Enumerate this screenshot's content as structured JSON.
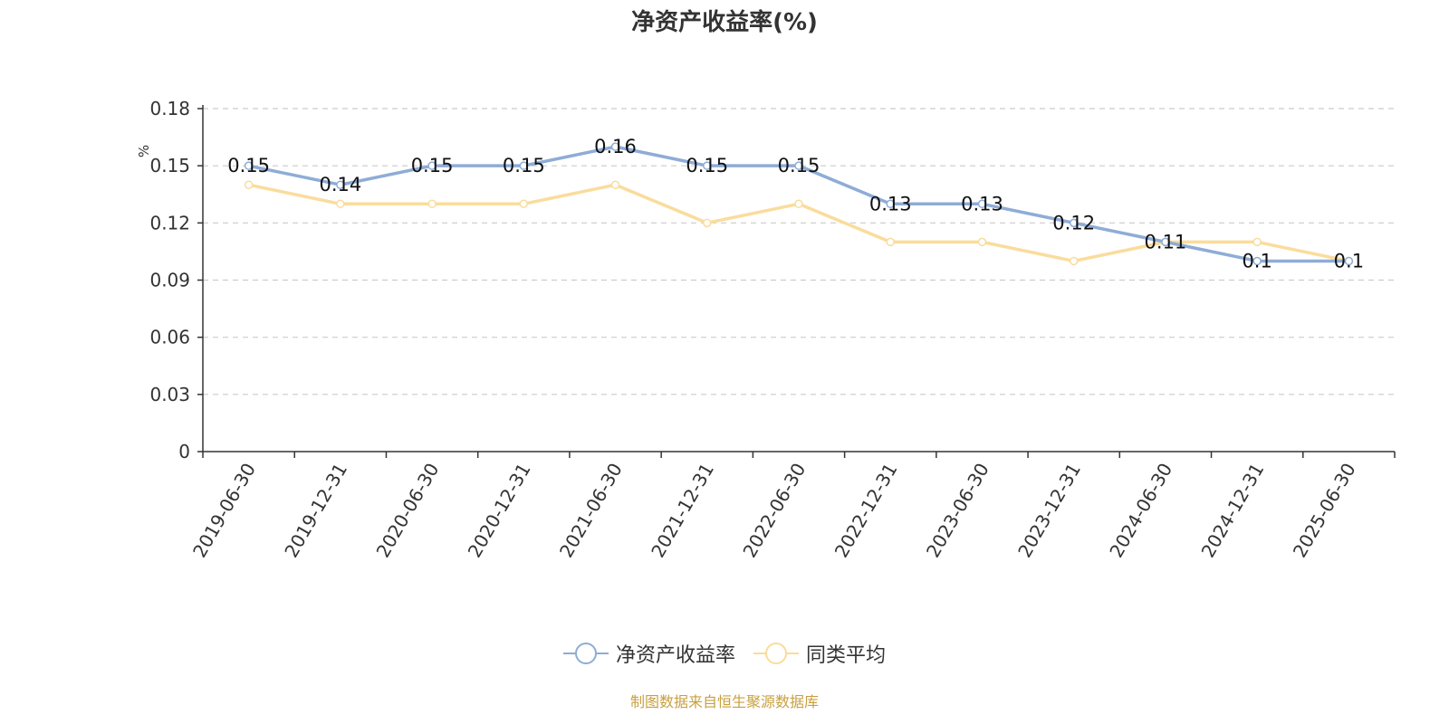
{
  "title": "净资产收益率(%)",
  "source": "制图数据来自恒生聚源数据库",
  "colors": {
    "series1": "#8eacd6",
    "series2": "#fadc9b",
    "grid": "#cccccc",
    "axis": "#333333",
    "ylabel": "#e03030"
  },
  "chart_data": {
    "type": "line",
    "title": "净资产收益率(%)",
    "ylabel": "%",
    "xlabel": "",
    "ylim": [
      0,
      0.18
    ],
    "yticks": [
      0,
      0.03,
      0.06,
      0.09,
      0.12,
      0.15,
      0.18
    ],
    "ytick_labels": [
      "0",
      "0.03",
      "0.06",
      "0.09",
      "0.12",
      "0.15",
      "0.18"
    ],
    "grid": true,
    "legend": "bottom",
    "categories": [
      "2019-06-30",
      "2019-12-31",
      "2020-06-30",
      "2020-12-31",
      "2021-06-30",
      "2021-12-31",
      "2022-06-30",
      "2022-12-31",
      "2023-06-30",
      "2023-12-31",
      "2024-06-30",
      "2024-12-31",
      "2025-06-30"
    ],
    "series": [
      {
        "name": "净资产收益率",
        "values": [
          0.15,
          0.14,
          0.15,
          0.15,
          0.16,
          0.15,
          0.15,
          0.13,
          0.13,
          0.12,
          0.11,
          0.1,
          0.1
        ],
        "labels": [
          "0.15",
          "0.14",
          "0.15",
          "0.15",
          "0.16",
          "0.15",
          "0.15",
          "0.13",
          "0.13",
          "0.12",
          "0.11",
          "0.1",
          "0.1"
        ]
      },
      {
        "name": "同类平均",
        "values": [
          0.14,
          0.13,
          0.13,
          0.13,
          0.14,
          0.12,
          0.13,
          0.11,
          0.11,
          0.1,
          0.11,
          0.11,
          0.1
        ]
      }
    ]
  }
}
